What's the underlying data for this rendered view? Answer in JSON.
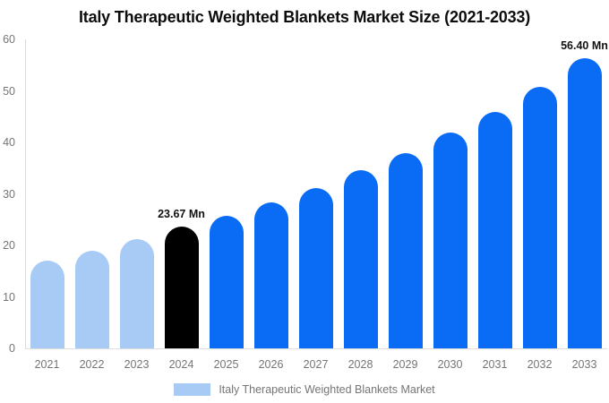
{
  "chart_data": {
    "type": "bar",
    "title": "Italy Therapeutic Weighted Blankets Market Size (2021-2033)",
    "categories": [
      "2021",
      "2022",
      "2023",
      "2024",
      "2025",
      "2026",
      "2027",
      "2028",
      "2029",
      "2030",
      "2031",
      "2032",
      "2033"
    ],
    "values": [
      17,
      19,
      21.2,
      23.67,
      25.8,
      28.4,
      31.2,
      34.6,
      38,
      42,
      46,
      50.7,
      56.4
    ],
    "unit": "Mn",
    "xlabel": "",
    "ylabel": "",
    "ylim": [
      0,
      60
    ],
    "yticks": [
      0,
      10,
      20,
      30,
      40,
      50,
      60
    ],
    "grid": false,
    "legend_position": "bottom",
    "bar_roles": [
      "historical",
      "historical",
      "historical",
      "current",
      "forecast",
      "forecast",
      "forecast",
      "forecast",
      "forecast",
      "forecast",
      "forecast",
      "forecast",
      "forecast"
    ],
    "colors": {
      "historical": "#a7cbf5",
      "current": "#000000",
      "forecast": "#0a6cf5",
      "axis": "#d9d9d9",
      "tick_text": "#757575"
    },
    "annotations": [
      {
        "index": 3,
        "label": "23.67 Mn"
      },
      {
        "index": 12,
        "label": "56.40 Mn"
      }
    ],
    "legend": [
      {
        "label": "Italy Therapeutic Weighted Blankets Market",
        "color": "#a7cbf5"
      }
    ]
  }
}
